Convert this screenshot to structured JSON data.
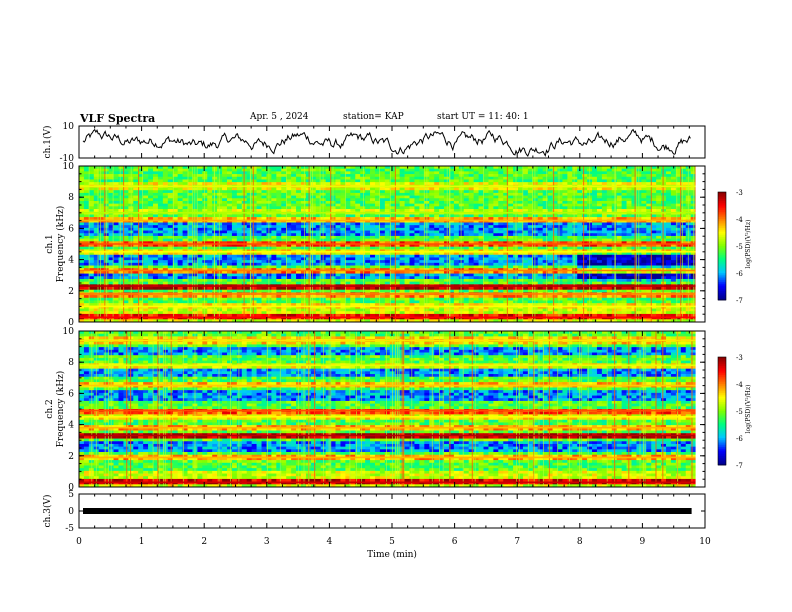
{
  "header": {
    "title": "VLF Spectra",
    "date": "Apr. 5  , 2024",
    "station": "station= KAP",
    "start": "start  UT  =   11: 40: 1"
  },
  "chart_data": [
    {
      "type": "line",
      "panel": "ch1-waveform",
      "ylabel": "ch.1(V)",
      "ylim": [
        -10,
        10
      ],
      "yticks": [
        "10",
        "-10"
      ]
    },
    {
      "type": "heatmap",
      "panel": "ch1-spectrogram",
      "ylabel": "ch.1\nFrequency (kHz)",
      "ylim": [
        0,
        10
      ],
      "yticks": [
        "0",
        "2",
        "4",
        "6",
        "8",
        "10"
      ],
      "colorbar": {
        "label": "log(PSD)(V²/Hz)",
        "ticks": [
          "-3",
          "-4",
          "-5",
          "-6",
          "-7"
        ],
        "range": [
          -7,
          -3
        ]
      },
      "bands_khz": [
        {
          "f": 0.3,
          "level": -3.5
        },
        {
          "f": 1.0,
          "level": -4.5
        },
        {
          "f": 1.8,
          "level": -4.0
        },
        {
          "f": 2.3,
          "level": -3.2
        },
        {
          "f": 3.3,
          "level": -4.0
        },
        {
          "f": 4.5,
          "level": -4.5
        },
        {
          "f": 5.0,
          "level": -3.8
        },
        {
          "f": 6.5,
          "level": -4.2
        },
        {
          "f": 7.0,
          "level": -4.8
        },
        {
          "f": 8.7,
          "level": -4.6
        }
      ],
      "quiet_khz": [
        [
          5.5,
          6.3
        ],
        [
          2.8,
          3.2
        ],
        [
          3.6,
          4.3
        ]
      ]
    },
    {
      "type": "heatmap",
      "panel": "ch2-spectrogram",
      "ylabel": "ch.2\nFrequency (kHz)",
      "ylim": [
        0,
        10
      ],
      "yticks": [
        "0",
        "2",
        "4",
        "6",
        "8",
        "10"
      ],
      "colorbar": {
        "label": "log(PSD)(V²/Hz)",
        "ticks": [
          "-3",
          "-4",
          "-5",
          "-6",
          "-7"
        ],
        "range": [
          -7,
          -3
        ]
      },
      "bands_khz": [
        {
          "f": 0.3,
          "level": -3.3
        },
        {
          "f": 1.9,
          "level": -4.2
        },
        {
          "f": 3.3,
          "level": -3.2
        },
        {
          "f": 3.8,
          "level": -4.2
        },
        {
          "f": 4.5,
          "level": -4.5
        },
        {
          "f": 4.9,
          "level": -3.8
        },
        {
          "f": 6.5,
          "level": -4.3
        },
        {
          "f": 7.8,
          "level": -4.6
        },
        {
          "f": 9.4,
          "level": -4.4
        }
      ],
      "quiet_khz": [
        [
          5.5,
          6.2
        ],
        [
          2.2,
          2.9
        ],
        [
          7.0,
          7.6
        ],
        [
          8.5,
          9.0
        ]
      ]
    },
    {
      "type": "line",
      "panel": "ch3-waveform",
      "ylabel": "ch.3(V)",
      "ylim": [
        -5,
        5
      ],
      "yticks": [
        "5",
        "0",
        "-5"
      ],
      "xlabel": "Time  (min)",
      "xlim": [
        0,
        10
      ],
      "xticks": [
        "0",
        "1",
        "2",
        "3",
        "4",
        "5",
        "6",
        "7",
        "8",
        "9",
        "10"
      ]
    }
  ],
  "colors": {
    "colormap": [
      "#00008f",
      "#0000ff",
      "#00c8ff",
      "#00ff80",
      "#80ff00",
      "#ffff00",
      "#ff8000",
      "#ff0000",
      "#8b0000"
    ]
  }
}
